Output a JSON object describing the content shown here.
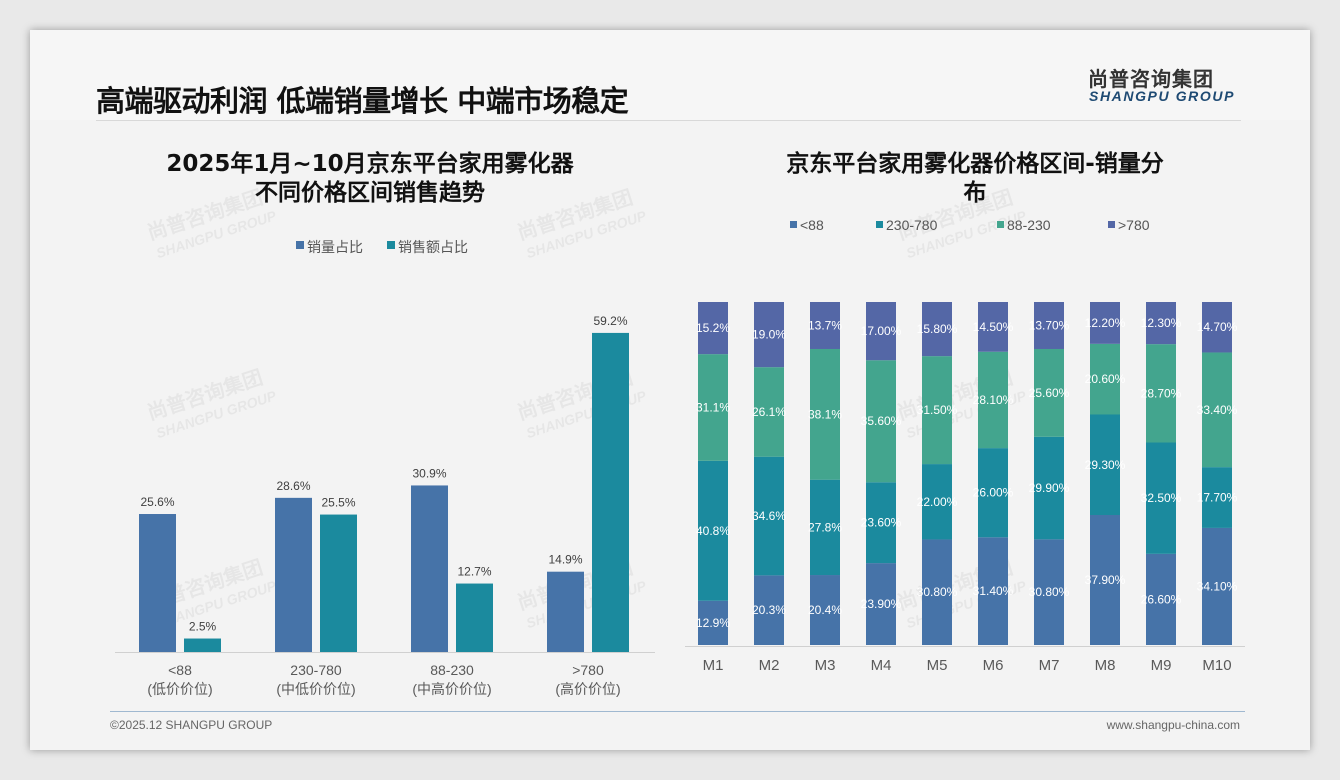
{
  "header": {
    "title": "高端驱动利润 低端销量增长 中端市场稳定",
    "logo_cn": "尚普咨询集团",
    "logo_en": "SHANGPU GROUP"
  },
  "footer": {
    "copyright": "©2025.12 SHANGPU GROUP",
    "website": "www.shangpu-china.com"
  },
  "watermark": {
    "cn": "尚普咨询集团",
    "en": "SHANGPU GROUP"
  },
  "colors": {
    "sales_volume": "#4673a8",
    "sales_amount": "#1b8a9e",
    "lt88": "#4673a8",
    "r230_780": "#1b8a9e",
    "r88_230": "#43a58e",
    "gt780": "#5467a6"
  },
  "chart_data": [
    {
      "type": "bar",
      "title_line1": "2025年1月~10月京东平台家用雾化器",
      "title_line2": "不同价格区间销售趋势",
      "categories": [
        "<88",
        "230-780",
        "88-230",
        ">780"
      ],
      "category_sublabels": [
        "(低价价位)",
        "(中低价价位)",
        "(中高价价位)",
        "(高价价位)"
      ],
      "series": [
        {
          "name": "销量占比",
          "values": [
            25.6,
            28.6,
            30.9,
            14.9
          ],
          "labels": [
            "25.6%",
            "28.6%",
            "30.9%",
            "14.9%"
          ]
        },
        {
          "name": "销售额占比",
          "values": [
            2.5,
            25.5,
            12.7,
            59.2
          ],
          "labels": [
            "2.5%",
            "25.5%",
            "12.7%",
            "59.2%"
          ]
        }
      ],
      "ylim": [
        0,
        60
      ],
      "legend": "top-center",
      "grid": false
    },
    {
      "type": "bar",
      "stacked": true,
      "title_line1": "京东平台家用雾化器价格区间-销量分",
      "title_line2": "布",
      "categories": [
        "M1",
        "M2",
        "M3",
        "M4",
        "M5",
        "M6",
        "M7",
        "M8",
        "M9",
        "M10"
      ],
      "series": [
        {
          "name": "<88",
          "values": [
            12.9,
            20.3,
            20.4,
            23.9,
            30.8,
            31.4,
            30.8,
            37.9,
            26.6,
            34.1
          ],
          "labels": [
            "12.9%",
            "20.3%",
            "20.4%",
            "23.90%",
            "30.80%",
            "31.40%",
            "30.80%",
            "37.90%",
            "26.60%",
            "34.10%"
          ]
        },
        {
          "name": "230-780",
          "values": [
            40.8,
            34.6,
            27.8,
            23.6,
            22.0,
            26.0,
            29.9,
            29.3,
            32.5,
            17.7
          ],
          "labels": [
            "40.8%",
            "34.6%",
            "27.8%",
            "23.60%",
            "22.00%",
            "26.00%",
            "29.90%",
            "29.30%",
            "32.50%",
            "17.70%"
          ]
        },
        {
          "name": "88-230",
          "values": [
            31.1,
            26.1,
            38.1,
            35.6,
            31.5,
            28.1,
            25.6,
            20.6,
            28.7,
            33.4
          ],
          "labels": [
            "31.1%",
            "26.1%",
            "38.1%",
            "35.60%",
            "31.50%",
            "28.10%",
            "25.60%",
            "20.60%",
            "28.70%",
            "33.40%"
          ]
        },
        {
          "name": ">780",
          "values": [
            15.2,
            19.0,
            13.7,
            17.0,
            15.8,
            14.5,
            13.7,
            12.2,
            12.3,
            14.7
          ],
          "labels": [
            "15.2%",
            "19.0%",
            "13.7%",
            "17.00%",
            "15.80%",
            "14.50%",
            "13.70%",
            "12.20%",
            "12.30%",
            "14.70%"
          ]
        }
      ],
      "ylim": [
        0,
        100
      ],
      "legend": "top-center",
      "grid": false
    }
  ]
}
